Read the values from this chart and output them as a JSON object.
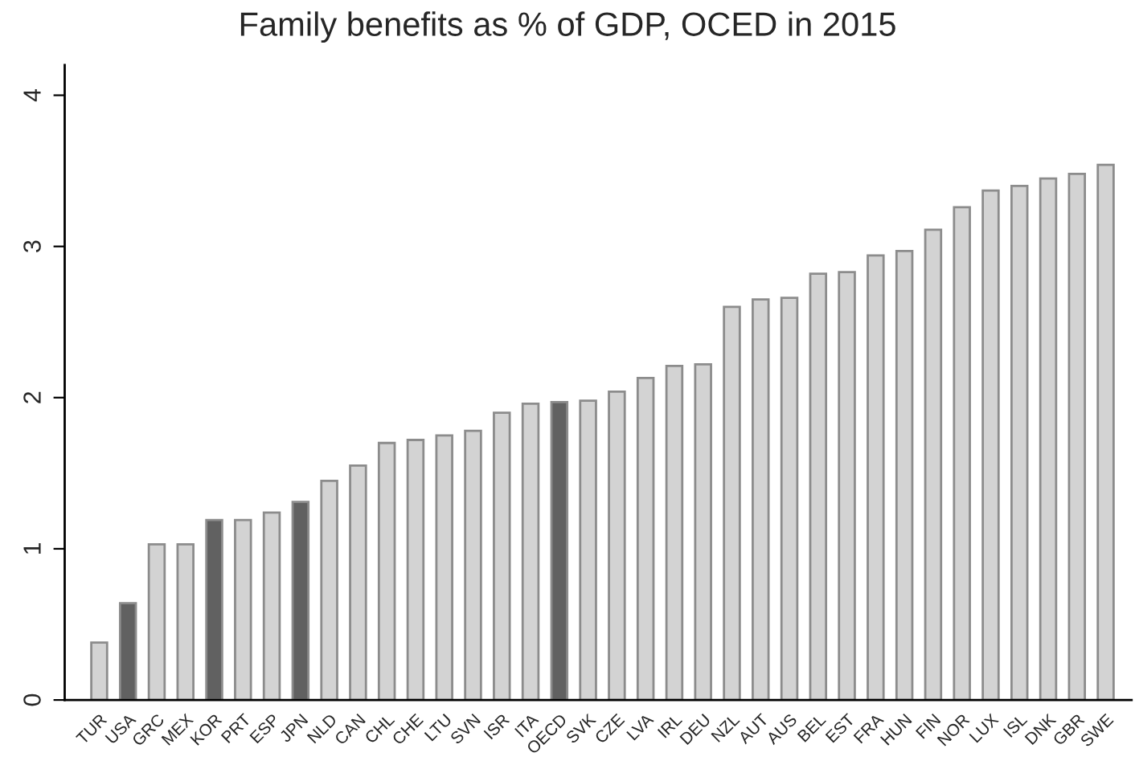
{
  "chart_data": {
    "type": "bar",
    "title": "Family benefits as % of GDP, OCED in 2015",
    "categories": [
      "TUR",
      "USA",
      "GRC",
      "MEX",
      "KOR",
      "PRT",
      "ESP",
      "JPN",
      "NLD",
      "CAN",
      "CHL",
      "CHE",
      "LTU",
      "SVN",
      "ISR",
      "ITA",
      "OECD",
      "SVK",
      "CZE",
      "LVA",
      "IRL",
      "DEU",
      "NZL",
      "AUT",
      "AUS",
      "BEL",
      "EST",
      "FRA",
      "HUN",
      "FIN",
      "NOR",
      "LUX",
      "ISL",
      "DNK",
      "GBR",
      "SWE"
    ],
    "values": [
      0.38,
      0.64,
      1.03,
      1.03,
      1.19,
      1.19,
      1.24,
      1.31,
      1.45,
      1.55,
      1.7,
      1.72,
      1.75,
      1.78,
      1.9,
      1.96,
      1.97,
      1.98,
      2.04,
      2.13,
      2.21,
      2.22,
      2.6,
      2.65,
      2.66,
      2.82,
      2.83,
      2.94,
      2.97,
      3.11,
      3.26,
      3.37,
      3.4,
      3.45,
      3.48,
      3.54
    ],
    "colors": [
      "#d3d3d3",
      "#616161",
      "#d3d3d3",
      "#d3d3d3",
      "#616161",
      "#d3d3d3",
      "#d3d3d3",
      "#616161",
      "#d3d3d3",
      "#d3d3d3",
      "#d3d3d3",
      "#d3d3d3",
      "#d3d3d3",
      "#d3d3d3",
      "#d3d3d3",
      "#d3d3d3",
      "#616161",
      "#d3d3d3",
      "#d3d3d3",
      "#d3d3d3",
      "#d3d3d3",
      "#d3d3d3",
      "#d3d3d3",
      "#d3d3d3",
      "#d3d3d3",
      "#d3d3d3",
      "#d3d3d3",
      "#d3d3d3",
      "#d3d3d3",
      "#d3d3d3",
      "#d3d3d3",
      "#d3d3d3",
      "#d3d3d3",
      "#d3d3d3",
      "#d3d3d3",
      "#d3d3d3"
    ],
    "ylim": [
      0,
      4.2
    ],
    "yticks": [
      0,
      1,
      2,
      3,
      4
    ],
    "grid": false,
    "legend": false
  }
}
